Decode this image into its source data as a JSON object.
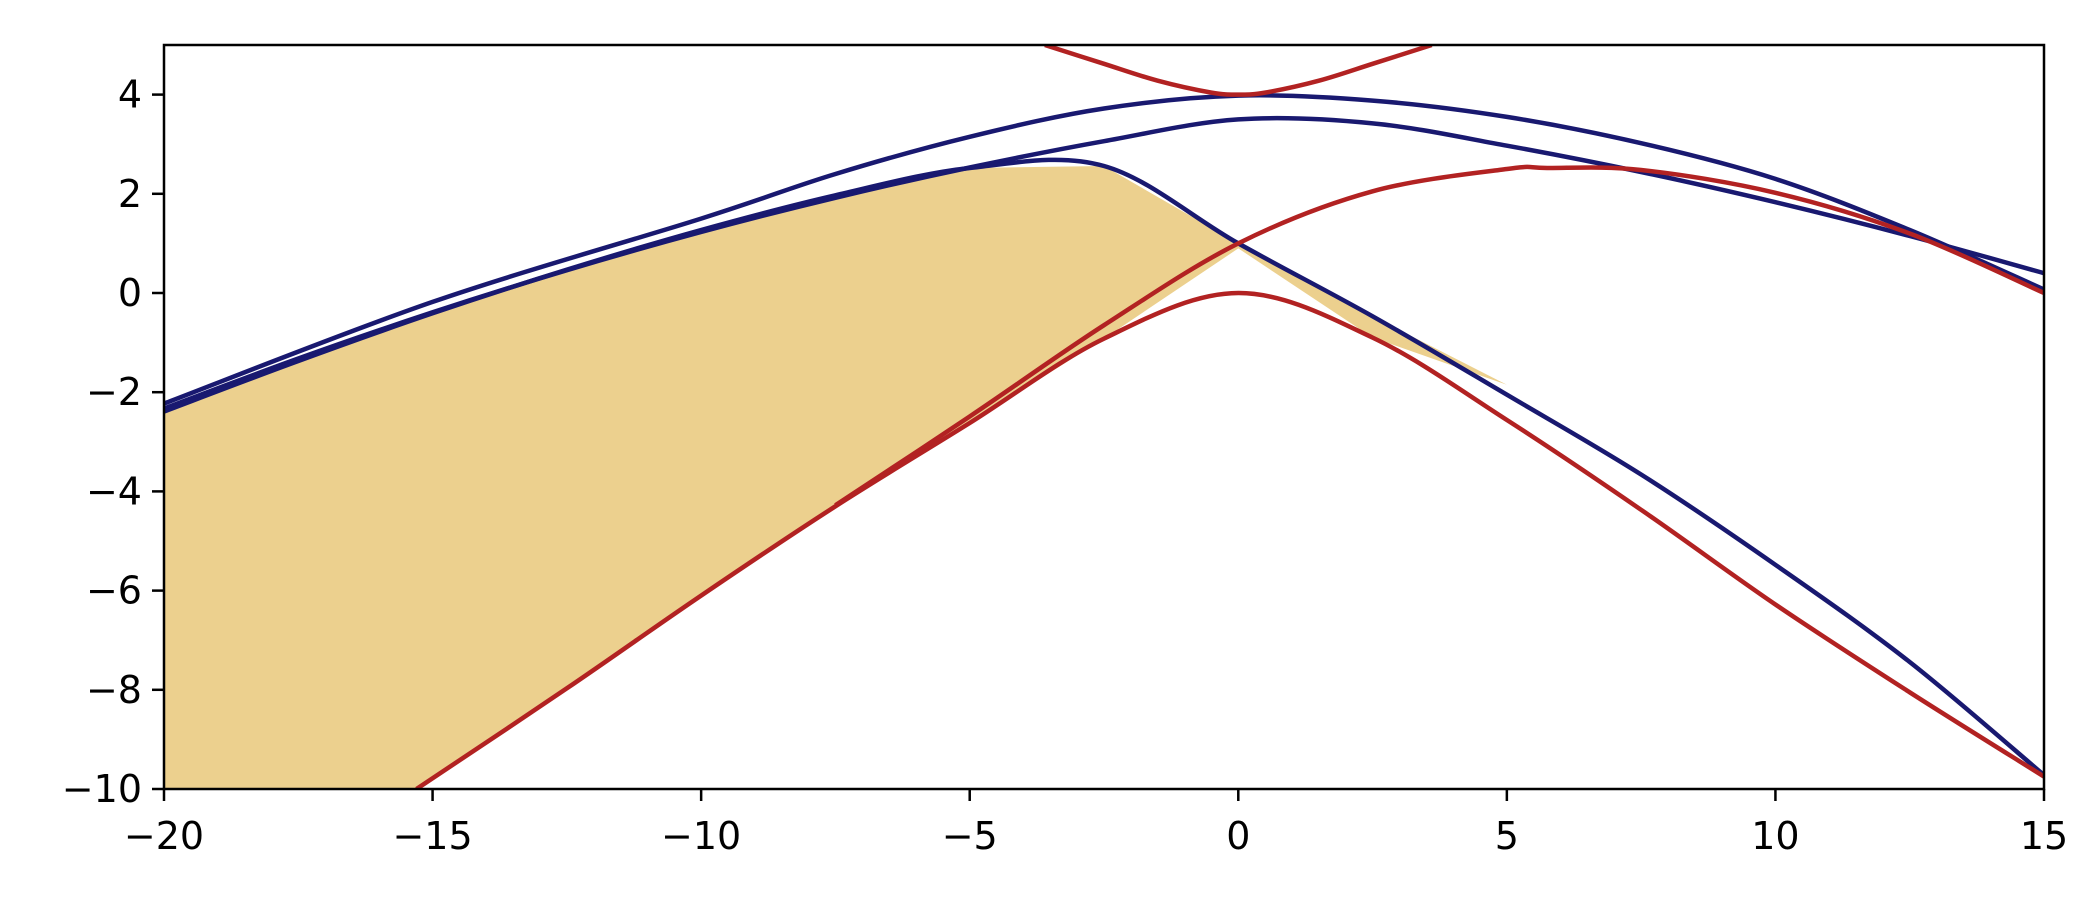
{
  "chart_data": {
    "type": "line",
    "title": "",
    "xlabel": "",
    "ylabel": "",
    "xlim": [
      -20,
      15
    ],
    "ylim": [
      -10,
      5
    ],
    "grid": false,
    "legend": "none",
    "x_ticks": [
      {
        "value": -20,
        "label": "−20"
      },
      {
        "value": -15,
        "label": "−15"
      },
      {
        "value": -10,
        "label": "−10"
      },
      {
        "value": -5,
        "label": "−5"
      },
      {
        "value": 0,
        "label": "0"
      },
      {
        "value": 5,
        "label": "5"
      },
      {
        "value": 10,
        "label": "10"
      },
      {
        "value": 15,
        "label": "15"
      }
    ],
    "y_ticks": [
      {
        "value": -10,
        "label": "−10"
      },
      {
        "value": -8,
        "label": "−8"
      },
      {
        "value": -6,
        "label": "−6"
      },
      {
        "value": -4,
        "label": "−4"
      },
      {
        "value": -2,
        "label": "−2"
      },
      {
        "value": 0,
        "label": "0"
      },
      {
        "value": 2,
        "label": "2"
      },
      {
        "value": 4,
        "label": "4"
      }
    ],
    "series": [
      {
        "color": "#191970",
        "x": [
          -20,
          -17.5,
          -15,
          -12.5,
          -10,
          -7.5,
          -5,
          -2.5,
          0,
          2.5,
          5,
          7.5,
          10,
          12.5,
          15
        ],
        "y": [
          -2.33,
          -1.32,
          -0.39,
          0.46,
          1.23,
          1.92,
          2.53,
          3.06,
          3.5,
          3.42,
          2.97,
          2.44,
          1.83,
          1.15,
          0.4
        ]
      },
      {
        "color": "#191970",
        "x": [
          -20,
          -17.5,
          -15,
          -12.5,
          -10,
          -7.5,
          -5,
          -2.5,
          0,
          2.5,
          5,
          7.5,
          10,
          12.5,
          15
        ],
        "y": [
          -2.39,
          -1.37,
          -0.41,
          0.47,
          1.27,
          1.97,
          2.52,
          2.56,
          1.0,
          -0.47,
          -2.05,
          -3.66,
          -5.48,
          -7.44,
          -9.72
        ]
      },
      {
        "color": "#191970",
        "x": [
          -20,
          -15,
          -10,
          -7.5,
          -5,
          -2.5,
          0,
          2.5,
          5,
          7.5,
          10,
          12.5,
          15
        ],
        "y": [
          -2.23,
          -0.18,
          1.5,
          2.4,
          3.15,
          3.72,
          3.98,
          3.88,
          3.55,
          3.02,
          2.3,
          1.27,
          0.07
        ]
      },
      {
        "color": "#b22222",
        "x": [
          -3.6,
          -2.5,
          -1.5,
          -0.5,
          0,
          0.5,
          1.5,
          2.5,
          3.6
        ],
        "y": [
          5.0,
          4.62,
          4.28,
          4.04,
          4.0,
          4.04,
          4.28,
          4.62,
          5.0
        ]
      },
      {
        "color": "#b22222",
        "x": [
          -15.3,
          -12.5,
          -10,
          -7.5,
          -5,
          -2.5,
          0,
          2.5,
          5,
          7.5,
          10,
          12.5,
          15
        ],
        "y": [
          -10.0,
          -7.97,
          -6.1,
          -4.3,
          -2.62,
          -0.92,
          0.0,
          -0.9,
          -2.56,
          -4.37,
          -6.28,
          -8.05,
          -9.75
        ]
      },
      {
        "color": "#b22222",
        "x": [
          -7.5,
          -5,
          -2.5,
          0,
          2.5,
          5,
          5.75,
          7.5,
          10,
          12.5,
          15
        ],
        "y": [
          -4.28,
          -2.49,
          -0.65,
          1.0,
          2.05,
          2.5,
          2.52,
          2.48,
          2.02,
          1.2,
          0.0
        ]
      }
    ],
    "fill_region": {
      "color": "#ecd08e",
      "upper": {
        "x": [
          -20,
          -17.5,
          -15,
          -12.5,
          -10,
          -7.5,
          -5,
          -2.5,
          0,
          2.5,
          5
        ],
        "y": [
          -2.39,
          -1.37,
          -0.41,
          0.47,
          1.27,
          1.97,
          2.52,
          2.56,
          1.0,
          -0.47,
          -1.85
        ]
      },
      "lower": {
        "x": [
          -20,
          -15.3,
          -12.5,
          -10,
          -7.5,
          -5,
          -2.5,
          0,
          2.5,
          5
        ],
        "y": [
          -10,
          -10.0,
          -7.97,
          -6.1,
          -4.3,
          -2.62,
          -0.92,
          0.9,
          -0.9,
          -1.85
        ]
      }
    }
  }
}
